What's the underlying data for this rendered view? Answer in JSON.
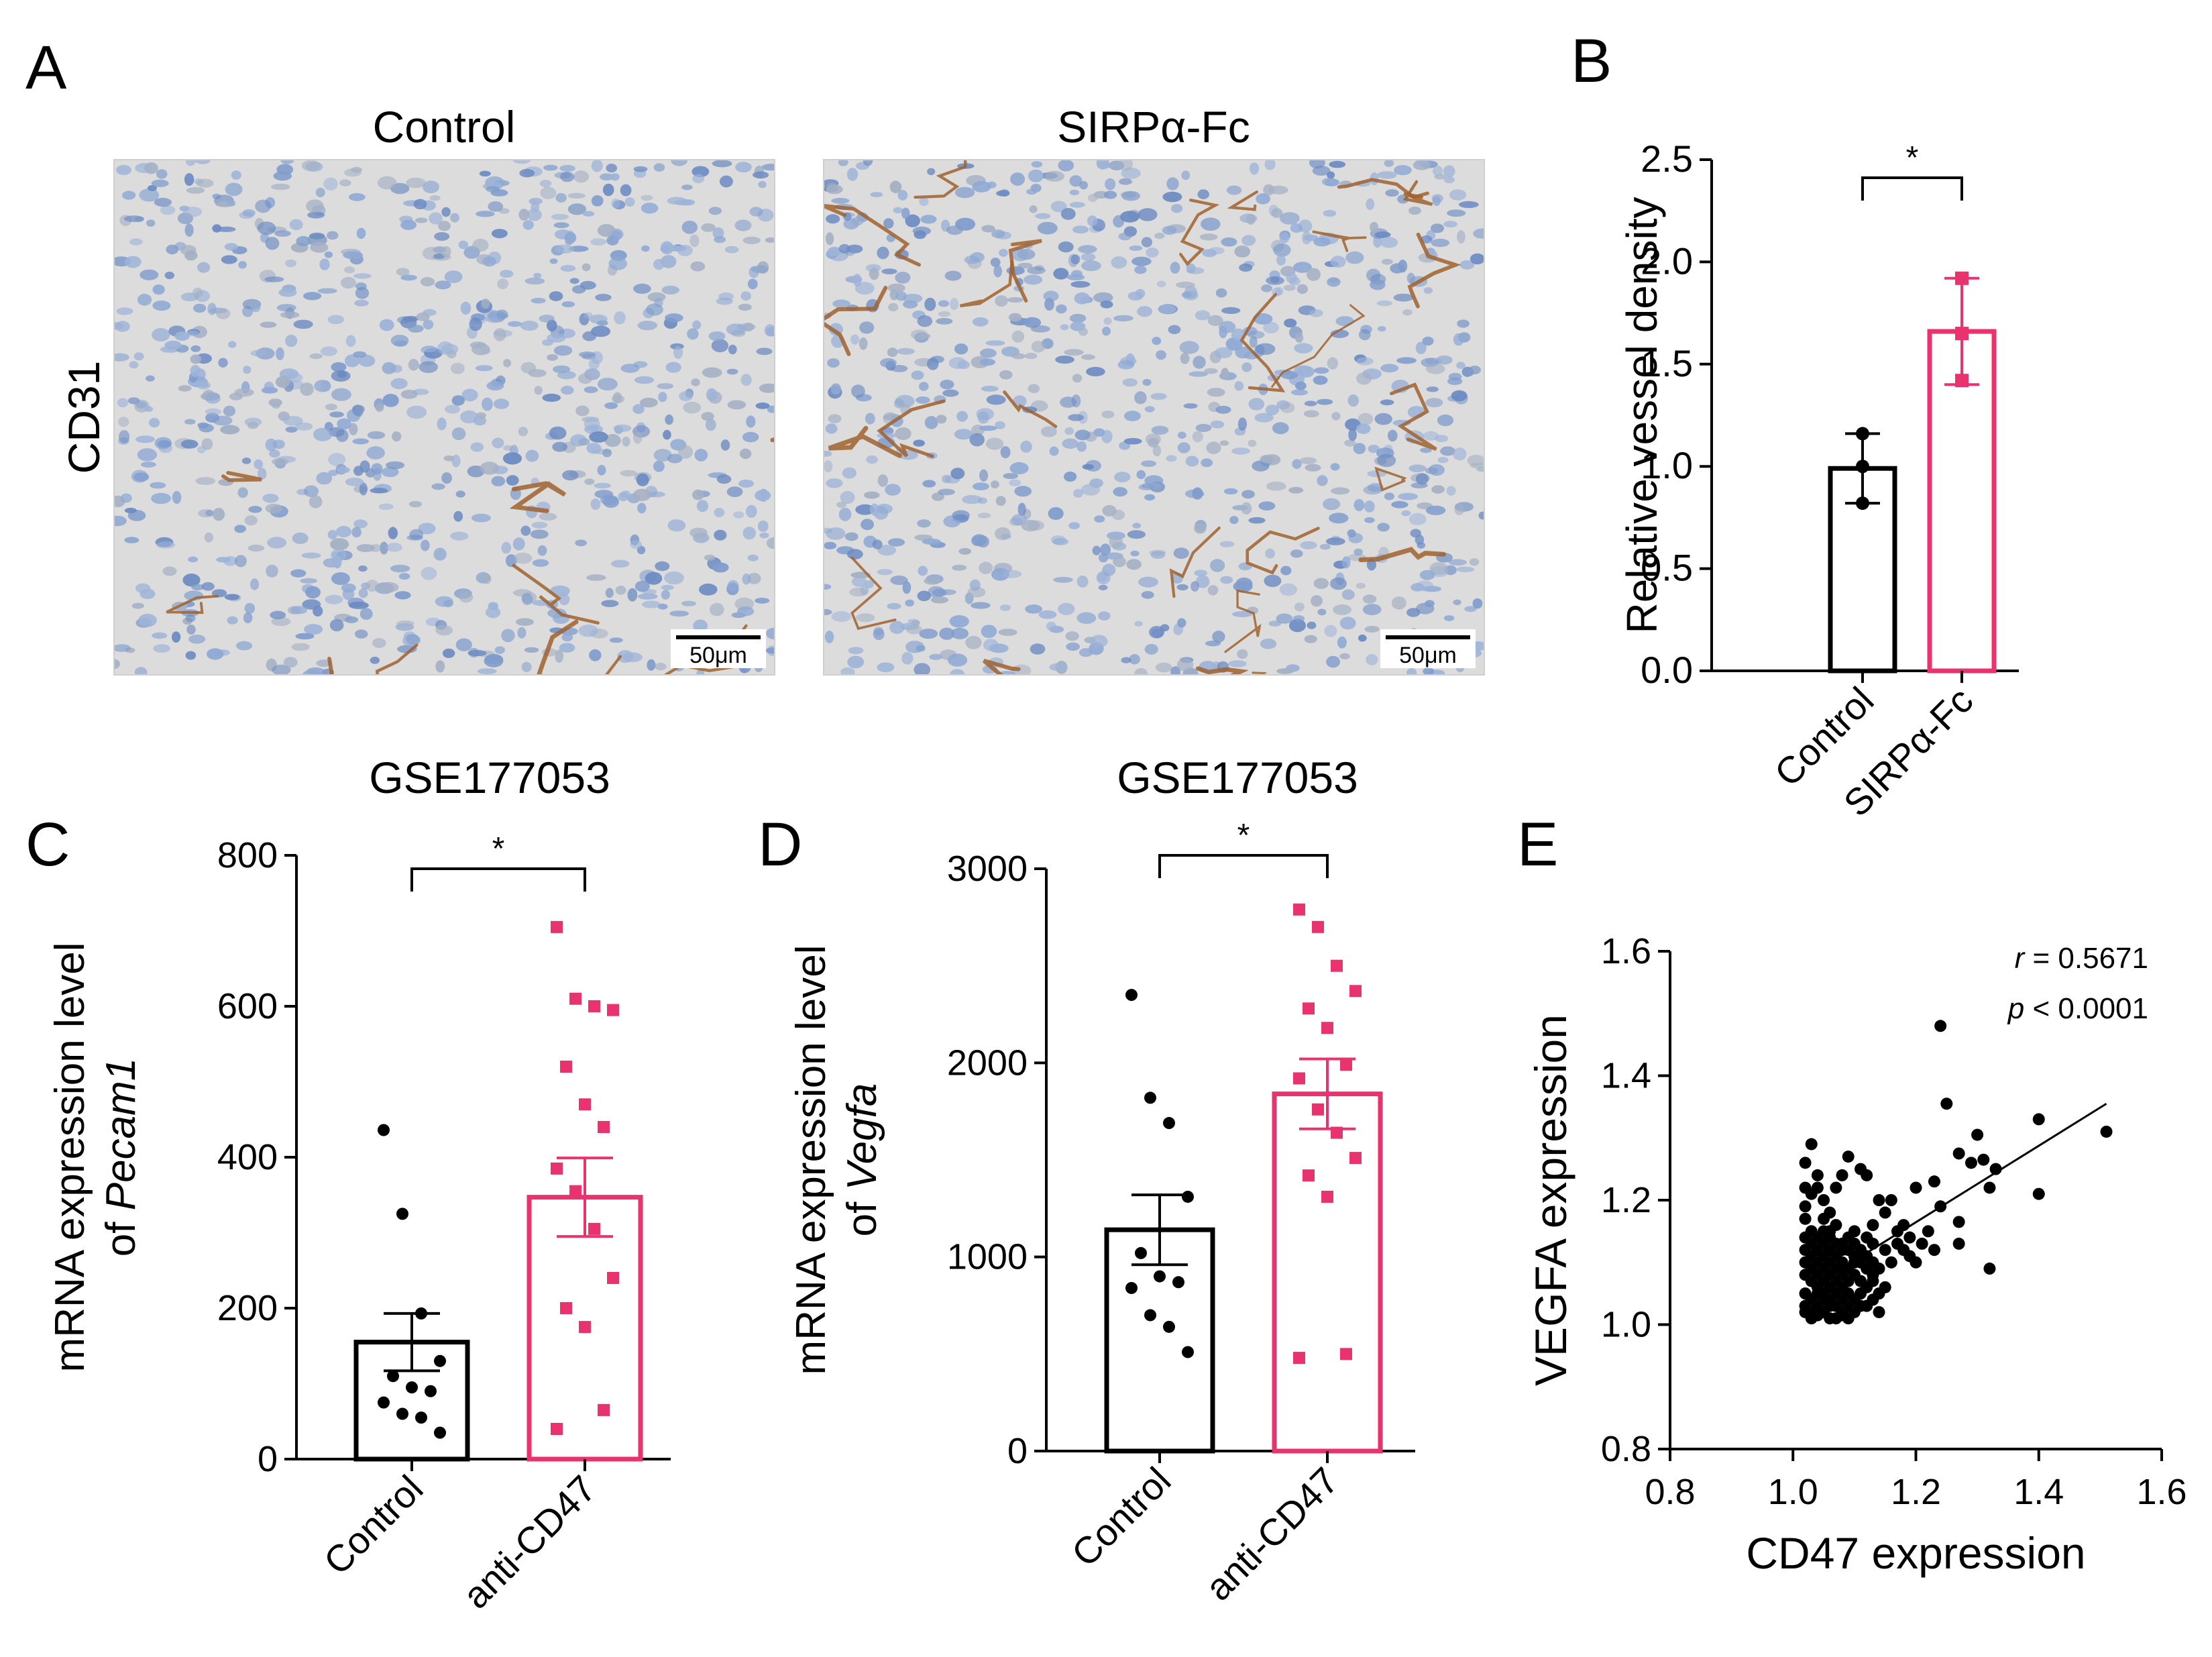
{
  "figure": {
    "panel_letters": [
      "A",
      "B",
      "C",
      "D",
      "E"
    ],
    "colors": {
      "control": "#000000",
      "treated": "#e8336e",
      "tissue": "#dcdcdc",
      "nuclei": "#7f9ccc",
      "stain": "#a0622e"
    }
  },
  "panel_a": {
    "row_label": "CD31",
    "images": [
      {
        "title": "Control",
        "scale_bar": "50μm"
      },
      {
        "title": "SIRPα-Fc",
        "scale_bar": "50μm"
      }
    ]
  },
  "chart_data": [
    {
      "panel": "B",
      "type": "bar",
      "title": "",
      "ylabel": "Relative vessel density",
      "xlabel": "",
      "ylim": [
        0,
        2.5
      ],
      "yticks": [
        "0.0",
        "0.5",
        "1.0",
        "1.5",
        "2.0",
        "2.5"
      ],
      "categories": [
        "Control",
        "SIRPα-Fc"
      ],
      "values": [
        0.99,
        1.66
      ],
      "error": [
        0.17,
        0.26
      ],
      "points": [
        [
          1.16,
          1.0,
          0.82
        ],
        [
          1.92,
          1.65,
          1.42
        ]
      ],
      "significance": "*"
    },
    {
      "panel": "C",
      "type": "bar",
      "title": "GSE177053",
      "ylabel": "mRNA expression level",
      "ylabel2_prefix": "of ",
      "ylabel2_gene": "Pecam1",
      "ylim": [
        0,
        800
      ],
      "yticks": [
        "0",
        "200",
        "400",
        "600",
        "800"
      ],
      "categories": [
        "Control",
        "anti-CD47"
      ],
      "values": [
        155,
        347
      ],
      "error": [
        38,
        52
      ],
      "points": [
        [
          436,
          325,
          193,
          130,
          110,
          95,
          90,
          75,
          60,
          55,
          35
        ],
        [
          705,
          610,
          600,
          595,
          520,
          470,
          440,
          385,
          355,
          305,
          240,
          200,
          175,
          65,
          40
        ]
      ],
      "significance": "*"
    },
    {
      "panel": "D",
      "type": "bar",
      "title": "GSE177053",
      "ylabel": "mRNA expression level",
      "ylabel2_prefix": "of ",
      "ylabel2_gene": "Vegfa",
      "ylim": [
        0,
        3000
      ],
      "yticks": [
        "0",
        "1000",
        "2000",
        "3000"
      ],
      "categories": [
        "Control",
        "anti-CD47"
      ],
      "values": [
        1140,
        1840
      ],
      "error": [
        180,
        180
      ],
      "points": [
        [
          2350,
          1820,
          1690,
          1310,
          1020,
          900,
          870,
          840,
          700,
          640,
          510
        ],
        [
          2790,
          2700,
          2500,
          2370,
          2280,
          2180,
          1990,
          1920,
          1760,
          1640,
          1510,
          1420,
          1310,
          500,
          480
        ]
      ],
      "significance": "*"
    },
    {
      "panel": "E",
      "type": "scatter",
      "title": "",
      "xlabel": "CD47 expression",
      "ylabel": "VEGFA expression",
      "xlim": [
        0.8,
        1.6
      ],
      "ylim": [
        0.8,
        1.6
      ],
      "xticks": [
        "0.8",
        "1.0",
        "1.2",
        "1.4",
        "1.6"
      ],
      "yticks": [
        "0.8",
        "1.0",
        "1.2",
        "1.4",
        "1.6"
      ],
      "annotation_r_symbol": "r",
      "annotation_r_value": " = 0.5671",
      "annotation_p_symbol": "p",
      "annotation_p_value": " < 0.0001",
      "fit": {
        "x": [
          1.03,
          1.51
        ],
        "y": [
          1.06,
          1.355
        ]
      },
      "points": [
        [
          1.24,
          1.48
        ],
        [
          1.25,
          1.355
        ],
        [
          1.4,
          1.33
        ],
        [
          1.3,
          1.305
        ],
        [
          1.51,
          1.31
        ],
        [
          1.31,
          1.265
        ],
        [
          1.33,
          1.25
        ],
        [
          1.29,
          1.26
        ],
        [
          1.27,
          1.275
        ],
        [
          1.32,
          1.22
        ],
        [
          1.4,
          1.21
        ],
        [
          1.24,
          1.19
        ],
        [
          1.27,
          1.165
        ],
        [
          1.23,
          1.23
        ],
        [
          1.2,
          1.22
        ],
        [
          1.18,
          1.16
        ],
        [
          1.27,
          1.13
        ],
        [
          1.32,
          1.09
        ],
        [
          1.16,
          1.2
        ],
        [
          1.19,
          1.14
        ],
        [
          1.17,
          1.13
        ],
        [
          1.15,
          1.18
        ],
        [
          1.14,
          1.2
        ],
        [
          1.13,
          1.16
        ],
        [
          1.12,
          1.14
        ],
        [
          1.11,
          1.25
        ],
        [
          1.12,
          1.24
        ],
        [
          1.13,
          1.13
        ],
        [
          1.1,
          1.15
        ],
        [
          1.09,
          1.27
        ],
        [
          1.08,
          1.24
        ],
        [
          1.07,
          1.22
        ],
        [
          1.06,
          1.18
        ],
        [
          1.05,
          1.2
        ],
        [
          1.04,
          1.22
        ],
        [
          1.03,
          1.29
        ],
        [
          1.02,
          1.26
        ],
        [
          1.04,
          1.24
        ],
        [
          1.03,
          1.21
        ],
        [
          1.02,
          1.19
        ],
        [
          1.05,
          1.17
        ],
        [
          1.06,
          1.15
        ],
        [
          1.07,
          1.16
        ],
        [
          1.08,
          1.13
        ],
        [
          1.09,
          1.12
        ],
        [
          1.1,
          1.11
        ],
        [
          1.11,
          1.1
        ],
        [
          1.12,
          1.09
        ],
        [
          1.13,
          1.08
        ],
        [
          1.02,
          1.17
        ],
        [
          1.03,
          1.15
        ],
        [
          1.04,
          1.14
        ],
        [
          1.05,
          1.13
        ],
        [
          1.06,
          1.12
        ],
        [
          1.07,
          1.11
        ],
        [
          1.08,
          1.1
        ],
        [
          1.09,
          1.09
        ],
        [
          1.1,
          1.08
        ],
        [
          1.11,
          1.07
        ],
        [
          1.02,
          1.12
        ],
        [
          1.03,
          1.11
        ],
        [
          1.04,
          1.1
        ],
        [
          1.05,
          1.09
        ],
        [
          1.06,
          1.08
        ],
        [
          1.07,
          1.07
        ],
        [
          1.08,
          1.06
        ],
        [
          1.09,
          1.05
        ],
        [
          1.1,
          1.04
        ],
        [
          1.02,
          1.08
        ],
        [
          1.03,
          1.07
        ],
        [
          1.04,
          1.06
        ],
        [
          1.05,
          1.05
        ],
        [
          1.06,
          1.04
        ],
        [
          1.07,
          1.03
        ],
        [
          1.08,
          1.02
        ],
        [
          1.09,
          1.03
        ],
        [
          1.02,
          1.05
        ],
        [
          1.03,
          1.04
        ],
        [
          1.04,
          1.03
        ],
        [
          1.05,
          1.02
        ],
        [
          1.06,
          1.01
        ],
        [
          1.02,
          1.02
        ],
        [
          1.03,
          1.01
        ],
        [
          1.04,
          1.015
        ],
        [
          1.02,
          1.03
        ],
        [
          1.03,
          1.09
        ],
        [
          1.05,
          1.11
        ],
        [
          1.07,
          1.09
        ],
        [
          1.09,
          1.07
        ],
        [
          1.11,
          1.05
        ],
        [
          1.12,
          1.03
        ],
        [
          1.13,
          1.04
        ],
        [
          1.14,
          1.02
        ],
        [
          1.06,
          1.06
        ],
        [
          1.08,
          1.08
        ],
        [
          1.1,
          1.1
        ],
        [
          1.04,
          1.08
        ],
        [
          1.05,
          1.07
        ],
        [
          1.06,
          1.1
        ],
        [
          1.07,
          1.05
        ],
        [
          1.08,
          1.04
        ],
        [
          1.03,
          1.13
        ],
        [
          1.04,
          1.12
        ],
        [
          1.05,
          1.15
        ],
        [
          1.06,
          1.14
        ],
        [
          1.07,
          1.13
        ],
        [
          1.08,
          1.12
        ],
        [
          1.09,
          1.14
        ],
        [
          1.1,
          1.13
        ],
        [
          1.11,
          1.12
        ],
        [
          1.12,
          1.11
        ],
        [
          1.13,
          1.1
        ],
        [
          1.14,
          1.09
        ],
        [
          1.15,
          1.12
        ],
        [
          1.16,
          1.1
        ],
        [
          1.17,
          1.15
        ],
        [
          1.18,
          1.12
        ],
        [
          1.19,
          1.11
        ],
        [
          1.2,
          1.1
        ],
        [
          1.21,
          1.13
        ],
        [
          1.22,
          1.15
        ],
        [
          1.23,
          1.12
        ],
        [
          1.02,
          1.1
        ],
        [
          1.02,
          1.14
        ],
        [
          1.02,
          1.22
        ],
        [
          1.03,
          1.02
        ],
        [
          1.04,
          1.05
        ],
        [
          1.05,
          1.04
        ],
        [
          1.06,
          1.03
        ],
        [
          1.07,
          1.01
        ],
        [
          1.08,
          1.015
        ],
        [
          1.09,
          1.01
        ],
        [
          1.1,
          1.02
        ],
        [
          1.11,
          1.03
        ],
        [
          1.12,
          1.06
        ],
        [
          1.13,
          1.07
        ],
        [
          1.14,
          1.05
        ],
        [
          1.15,
          1.06
        ]
      ]
    }
  ]
}
